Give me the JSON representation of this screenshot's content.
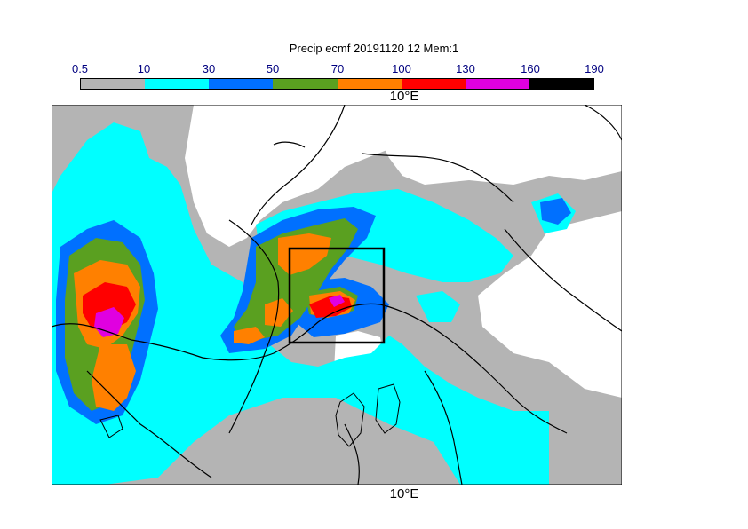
{
  "title": "Precip ecmf 20191120 12 Mem:1",
  "legend": {
    "ticks": [
      "0.5",
      "10",
      "30",
      "50",
      "70",
      "100",
      "130",
      "160",
      "190"
    ],
    "colors": [
      "#b4b4b4",
      "#00ffff",
      "#0070ff",
      "#5aa020",
      "#ff8000",
      "#ff0000",
      "#e000e0",
      "#000000"
    ]
  },
  "map": {
    "lon_label_top": "10°E",
    "lon_label_bottom": "10°E",
    "colors": {
      "ocean": "#00ffff",
      "dry": "#ffffff",
      "light": "#b4b4b4",
      "coast": "#000000"
    }
  }
}
